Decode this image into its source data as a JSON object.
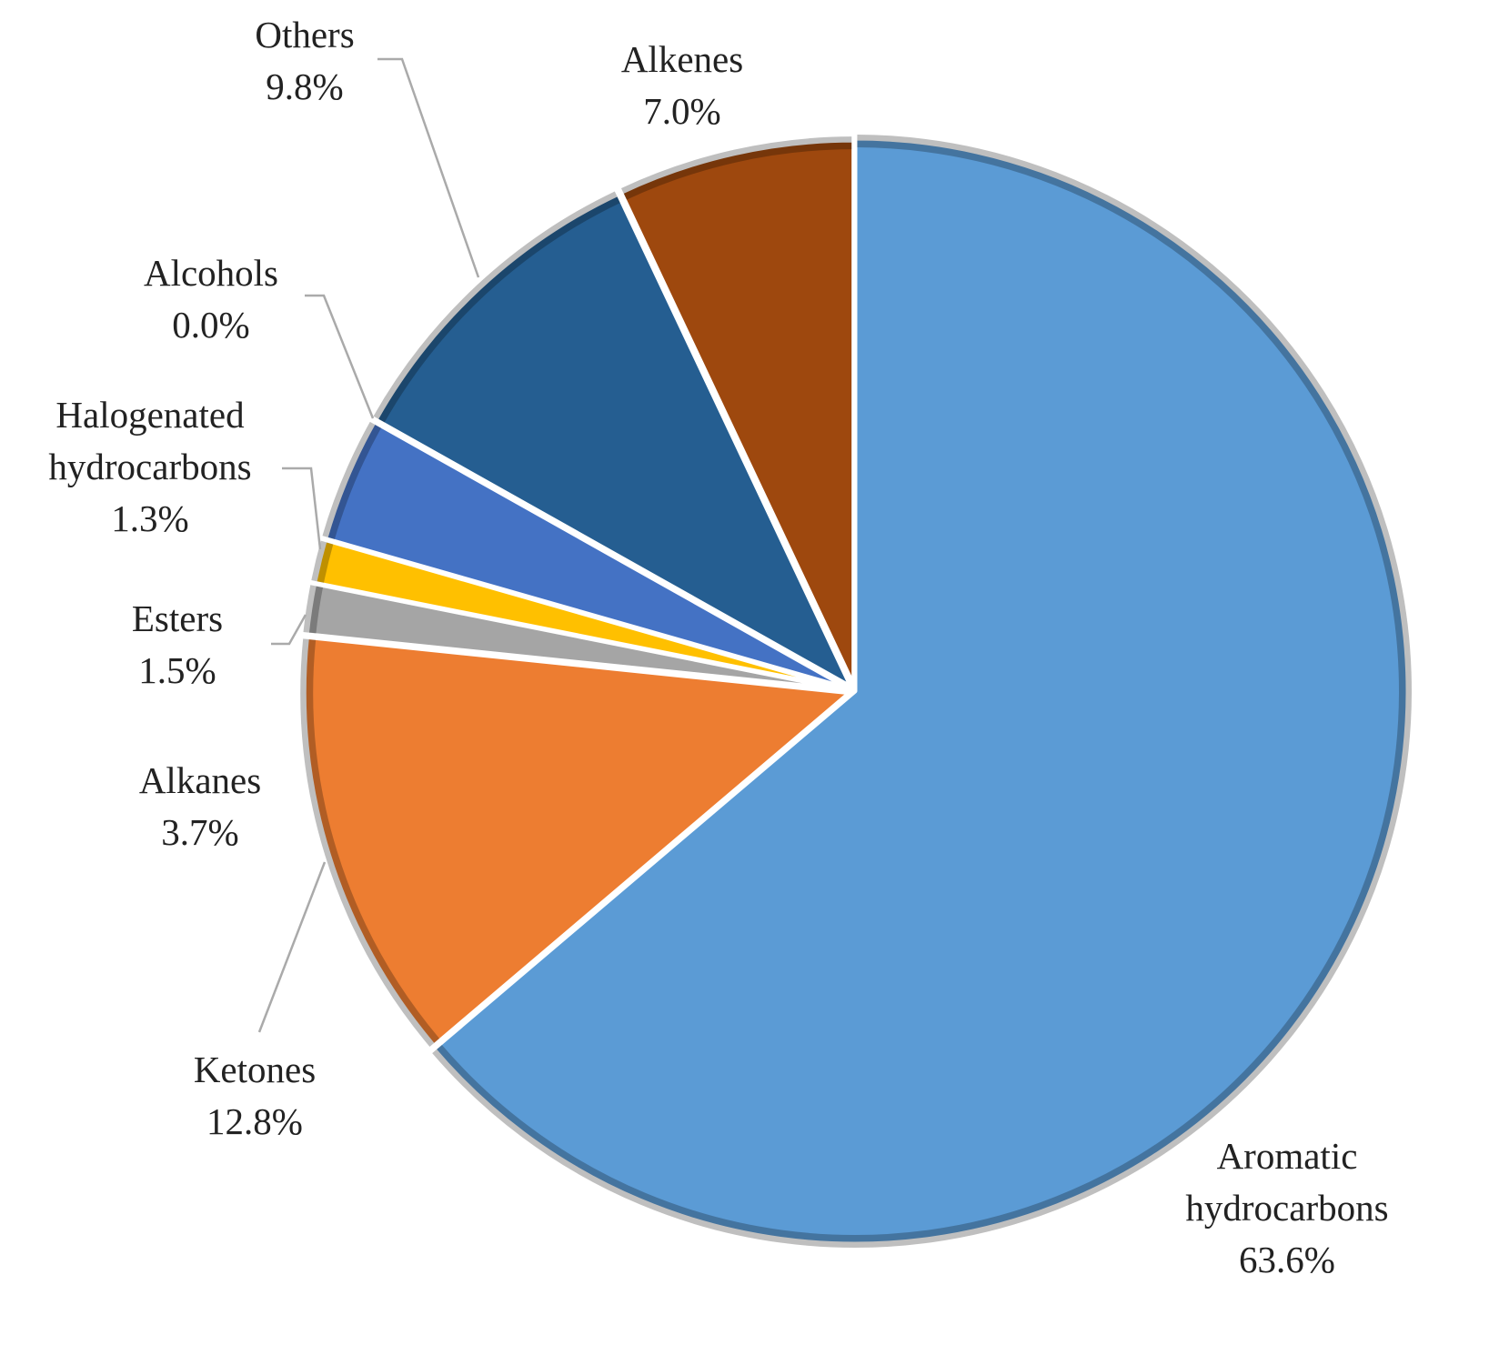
{
  "chart_data": {
    "type": "pie",
    "categories": [
      "Aromatic hydrocarbons",
      "Ketones",
      "Esters",
      "Halogenated hydrocarbons",
      "Alkanes",
      "Alcohols",
      "Others",
      "Alkenes"
    ],
    "values": [
      63.6,
      12.8,
      1.5,
      1.3,
      3.7,
      0.0,
      9.8,
      7.0
    ],
    "value_labels": [
      "63.6%",
      "12.8%",
      "1.5%",
      "1.3%",
      "3.7%",
      "0.0%",
      "9.8%",
      "7.0%"
    ],
    "colors": [
      "#5b9bd5",
      "#ed7d31",
      "#a5a5a5",
      "#ffc000",
      "#4472c4",
      "#70ad47",
      "#255e91",
      "#9e480e"
    ]
  }
}
